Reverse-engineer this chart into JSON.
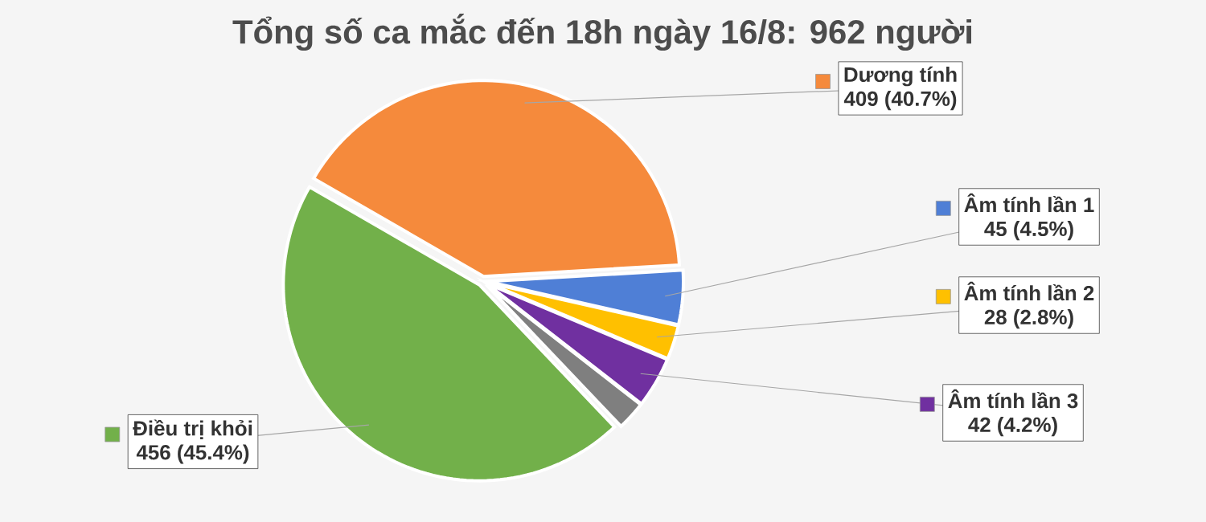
{
  "chart_data": {
    "type": "pie",
    "title": "Tổng số ca mắc đến 18h ngày 16/8: 962 người",
    "categories": [
      "Dương tính",
      "Âm tính lần 1",
      "Âm tính lần 2",
      "Âm tính lần 3",
      null,
      "Điều trị khỏi"
    ],
    "values": [
      409,
      45,
      28,
      42,
      24,
      456
    ],
    "value_labels": [
      "409 (40.7%)",
      "45 (4.5%)",
      "28 (2.8%)",
      "42 (4.2%)",
      null,
      "456 (45.4%)"
    ],
    "legend": "right",
    "colors": [
      "#f58a3c",
      "#4f7fd6",
      "#ffc000",
      "#7030a0",
      "#7f7f7f",
      "#72b04a"
    ]
  }
}
